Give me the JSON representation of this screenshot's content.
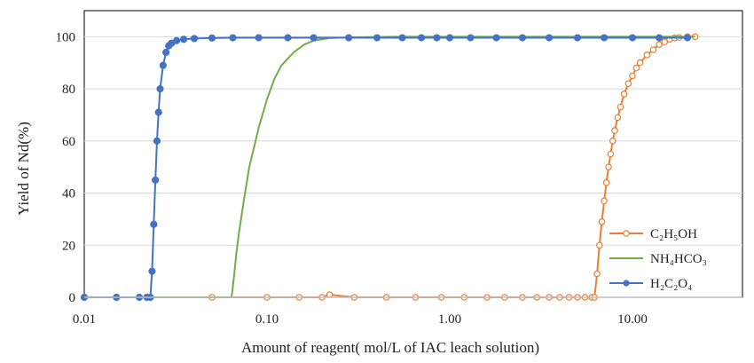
{
  "chart_data": {
    "type": "line",
    "title": "",
    "xlabel": "Amount of reagent( mol/L of IAC leach solution)",
    "ylabel": "Yield of Nd(%)",
    "xscale": "log",
    "xlim": [
      0.01,
      40
    ],
    "ylim": [
      0,
      110
    ],
    "x_tick_values": [
      0.01,
      0.1,
      1,
      10
    ],
    "x_tick_labels": [
      "0.01",
      "0.10",
      "1.00",
      "10.00"
    ],
    "y_tick_values": [
      0,
      20,
      40,
      60,
      80,
      100
    ],
    "y_tick_labels": [
      "0",
      "20",
      "40",
      "60",
      "80",
      "100"
    ],
    "legend_position": "bottom-right",
    "series": [
      {
        "name": "C₂H₅OH",
        "color": "#ED7D31",
        "marker": "open-circle",
        "x": [
          0.01,
          0.05,
          0.1,
          0.15,
          0.2,
          0.22,
          0.3,
          0.45,
          0.65,
          0.9,
          1.2,
          1.6,
          2.0,
          2.5,
          3.0,
          3.5,
          4.0,
          4.5,
          5.0,
          5.5,
          6.0,
          6.2,
          6.4,
          6.6,
          6.8,
          7.0,
          7.2,
          7.4,
          7.6,
          7.8,
          8.0,
          8.3,
          8.6,
          9.0,
          9.5,
          10.0,
          10.5,
          11.0,
          12.0,
          13.0,
          14.0,
          15.0,
          16.0,
          17.0,
          18.0,
          20.0,
          22.0
        ],
        "y": [
          0,
          0,
          0,
          0,
          0,
          1,
          0,
          0,
          0,
          0,
          0,
          0,
          0,
          0,
          0,
          0,
          0,
          0,
          0,
          0,
          0,
          0,
          9,
          20,
          29,
          37,
          44,
          50,
          55,
          60,
          64,
          69,
          73,
          78,
          82,
          85,
          88,
          90,
          93,
          95,
          97,
          98,
          99,
          99.5,
          99.7,
          100,
          100
        ]
      },
      {
        "name": "NH₄HCO₃",
        "color": "#70AD47",
        "marker": "none",
        "x": [
          0.01,
          0.064,
          0.066,
          0.068,
          0.07,
          0.075,
          0.08,
          0.09,
          0.1,
          0.11,
          0.12,
          0.14,
          0.16,
          0.18,
          0.22,
          0.3,
          0.5,
          1.0,
          5.0,
          22.0
        ],
        "y": [
          0,
          0,
          8,
          17,
          24,
          38,
          50,
          65,
          76,
          84,
          89,
          94,
          97,
          98.5,
          99.5,
          99.8,
          100,
          100,
          100,
          100
        ]
      },
      {
        "name": "H₂C₂O₄",
        "color": "#4472C4",
        "marker": "filled-circle",
        "x": [
          0.01,
          0.015,
          0.02,
          0.022,
          0.023,
          0.0235,
          0.024,
          0.0245,
          0.025,
          0.0255,
          0.026,
          0.027,
          0.028,
          0.029,
          0.03,
          0.032,
          0.035,
          0.04,
          0.05,
          0.065,
          0.09,
          0.13,
          0.18,
          0.28,
          0.4,
          0.55,
          0.7,
          0.85,
          1.0,
          1.3,
          1.8,
          2.5,
          3.5,
          5.0,
          7.0,
          10.0,
          14.0,
          20.0
        ],
        "y": [
          0,
          0,
          0,
          0,
          0,
          10,
          28,
          45,
          60,
          71,
          80,
          89,
          94,
          96.5,
          97.5,
          98.5,
          99,
          99.3,
          99.5,
          99.6,
          99.6,
          99.6,
          99.6,
          99.6,
          99.6,
          99.6,
          99.6,
          99.6,
          99.6,
          99.6,
          99.6,
          99.6,
          99.6,
          99.6,
          99.6,
          99.6,
          99.6,
          99.6
        ]
      }
    ]
  }
}
